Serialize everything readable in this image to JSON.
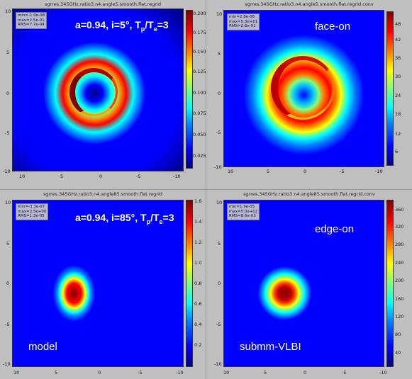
{
  "panels": [
    {
      "title": "sgrres.345GHz.ratio3.n4.angle5.smooth.flat.regrid",
      "stats": {
        "min": "min=-1.0e-08",
        "max": "max=2.5e-01",
        "rms": "RMS=7.7e-04"
      },
      "overlay_parts": [
        "a=0.94, i=5°, T",
        "p",
        "/T",
        "e",
        "=3"
      ],
      "overlay_label": "",
      "cbar_ticks": [
        "0.200",
        "0.175",
        "0.150",
        "0.125",
        "0.100",
        "0.075",
        "0.050",
        "0.025"
      ],
      "x_ticks": [
        "10",
        "5",
        "0",
        "-5",
        "-10"
      ],
      "y_ticks": [
        "10",
        "5",
        "0",
        "-5",
        "-10"
      ]
    },
    {
      "title": "sgrres.345GHz.ratio3.n4.angle5.smooth.flat.regrid.conv",
      "stats": {
        "min": "min=2.8e-06",
        "max": "max=5.3e+01",
        "rms": "RMS=2.6e-01"
      },
      "overlay_parts": [],
      "overlay_label": "face-on",
      "cbar_ticks": [
        "48",
        "42",
        "36",
        "30",
        "24",
        "18",
        "12",
        "6"
      ],
      "x_ticks": [
        "10",
        "5",
        "0",
        "-5",
        "-10"
      ],
      "y_ticks": [
        "10",
        "5",
        "0",
        "-5",
        "-10"
      ]
    },
    {
      "title": "sgrres.345GHz.ratio3.n4.angle85.smooth.flat.regrid",
      "stats": {
        "min": "min=-3.3e-07",
        "max": "max=2.5e+00",
        "rms": "RMS=1.3e-05"
      },
      "overlay_parts": [
        "a=0.94, i=85°, T",
        "p",
        "/T",
        "e",
        "=3"
      ],
      "overlay_label": "model",
      "cbar_ticks": [
        "1.6",
        "1.4",
        "1.2",
        "1.0",
        "0.8",
        "0.6",
        "0.4",
        "0.2"
      ],
      "x_ticks": [
        "10",
        "5",
        "0",
        "-5",
        "-10"
      ],
      "y_ticks": [
        "10",
        "5",
        "0",
        "-5",
        "-10"
      ]
    },
    {
      "title": "sgrres.345GHz.ratio3.n4.angle85.smooth.flat.regrid.conv",
      "stats": {
        "min": "min=1.9e-05",
        "max": "max=5.0e+02",
        "rms": "RMS=8.6e-03"
      },
      "overlay_parts": [],
      "overlay_label": "edge-on",
      "overlay_label2": "submm-VLBI",
      "cbar_ticks": [
        "360",
        "320",
        "280",
        "240",
        "200",
        "160",
        "120",
        "80",
        "40"
      ],
      "x_ticks": [
        "10",
        "5",
        "0",
        "-5",
        "-10"
      ],
      "y_ticks": [
        "10",
        "5",
        "0",
        "-5",
        "-10"
      ]
    }
  ],
  "colors": {
    "background": "#1a0ff0",
    "jet_high": "#7f0000",
    "jet_low": "#00007f"
  }
}
